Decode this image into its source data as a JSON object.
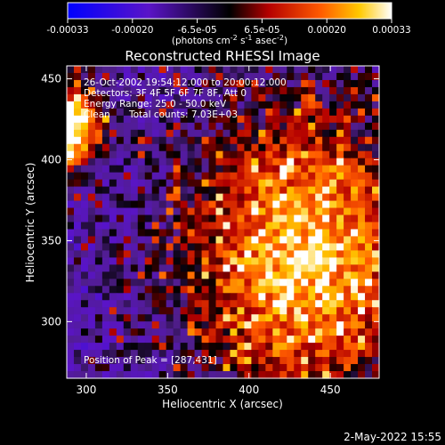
{
  "chart_data": {
    "type": "heatmap",
    "title": "Reconstructed RHESSI Image",
    "xlabel": "Heliocentric X (arcsec)",
    "ylabel": "Heliocentric Y (arcsec)",
    "xlim": [
      288,
      480
    ],
    "ylim": [
      265,
      458
    ],
    "xticks": [
      300,
      350,
      400,
      450
    ],
    "yticks": [
      300,
      350,
      400,
      450
    ],
    "colorbar": {
      "range": [
        -0.00033,
        0.00033
      ],
      "ticks": [
        "-0.00033",
        "-0.00020",
        "-6.5e-05",
        "6.5e-05",
        "0.00020",
        "0.00033"
      ],
      "unit_label": "(photons cm",
      "unit_exp1": "-2",
      "unit_mid1": " s",
      "unit_exp2": "-1",
      "unit_mid2": " asec",
      "unit_exp3": "-2",
      "unit_end": ")"
    },
    "annotations": {
      "time_range": "26-Oct-2002 19:54:12.000 to 20:00:12.000",
      "detectors": "Detectors: 3F 4F 5F 6F 7F 8F, Att 0",
      "energy": "Energy Range: 25.0 - 50.0 keV",
      "method": "Clean",
      "counts": "Total counts: 7.03E+03",
      "peak": "Position of Peak = [287,431]"
    },
    "footer_date": "2-May-2022 15:55"
  }
}
